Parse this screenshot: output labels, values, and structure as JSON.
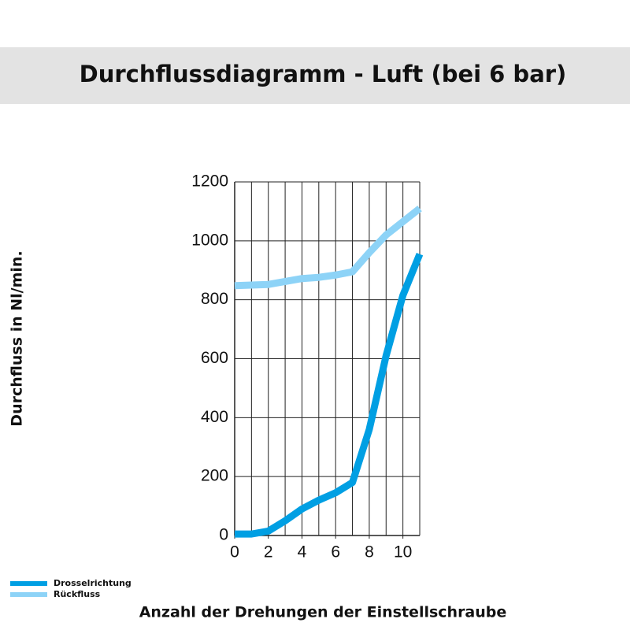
{
  "chart_data": {
    "type": "line",
    "title": "Durchflussdiagramm - Luft (bei 6 bar)",
    "ylabel": "Durchfluss in Nl/min.",
    "xlabel": "Anzahl der Drehungen der Einstellschraube",
    "x": [
      0,
      1,
      2,
      3,
      4,
      5,
      6,
      7,
      8,
      9,
      10,
      11
    ],
    "series": [
      {
        "name": "Drosselrichtung",
        "color": "#009fe3",
        "values": [
          5,
          5,
          15,
          50,
          90,
          120,
          145,
          180,
          360,
          610,
          815,
          955
        ]
      },
      {
        "name": "Rückfluss",
        "color": "#8dd3f7",
        "values": [
          848,
          850,
          852,
          862,
          872,
          876,
          884,
          895,
          960,
          1020,
          1065,
          1110
        ]
      }
    ],
    "xlim": [
      0,
      11
    ],
    "xticks": [
      0,
      2,
      4,
      6,
      8,
      10
    ],
    "ylim": [
      0,
      1200
    ],
    "yticks": [
      0,
      200,
      400,
      600,
      800,
      1000,
      1200
    ],
    "grid": true,
    "legend": "bottom-left"
  }
}
